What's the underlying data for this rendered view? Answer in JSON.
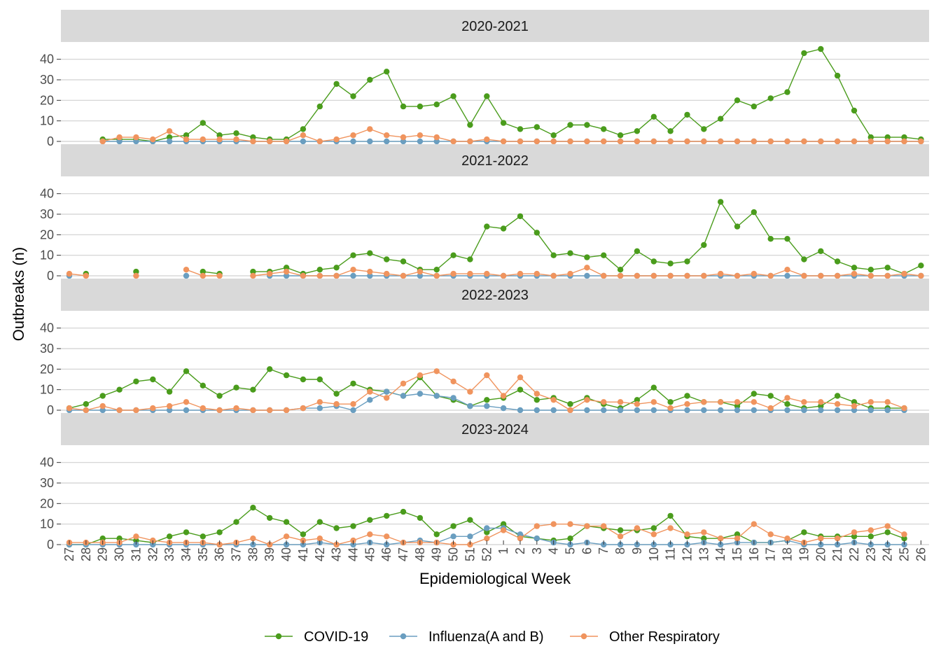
{
  "chart_data": {
    "type": "line",
    "xlabel": "Epidemiological Week",
    "ylabel": "Outbreaks (n)",
    "ylim": [
      0,
      45
    ],
    "yticks": [
      0,
      10,
      20,
      30,
      40
    ],
    "grid": true,
    "legend_position": "bottom",
    "categories": [
      "27",
      "28",
      "29",
      "30",
      "31",
      "32",
      "33",
      "34",
      "35",
      "36",
      "37",
      "38",
      "39",
      "40",
      "41",
      "42",
      "43",
      "44",
      "45",
      "46",
      "47",
      "48",
      "49",
      "50",
      "51",
      "52",
      "1",
      "2",
      "3",
      "4",
      "5",
      "6",
      "7",
      "8",
      "9",
      "10",
      "11",
      "12",
      "13",
      "14",
      "15",
      "16",
      "17",
      "18",
      "19",
      "20",
      "21",
      "22",
      "23",
      "24",
      "25",
      "26"
    ],
    "series_styles": [
      {
        "name": "COVID-19",
        "color": "#4a9c1c"
      },
      {
        "name": "Influenza(A and B)",
        "color": "#6a9ec0"
      },
      {
        "name": "Other Respiratory",
        "color": "#f0945e"
      }
    ],
    "panels": [
      {
        "title": "2020-2021",
        "series": [
          {
            "name": "COVID-19",
            "values": [
              null,
              null,
              1,
              1,
              1,
              0,
              2,
              3,
              9,
              3,
              4,
              2,
              1,
              1,
              6,
              17,
              28,
              22,
              30,
              34,
              17,
              17,
              18,
              22,
              8,
              22,
              9,
              6,
              7,
              3,
              8,
              8,
              6,
              3,
              5,
              12,
              5,
              13,
              6,
              11,
              20,
              17,
              21,
              24,
              43,
              45,
              32,
              15,
              2,
              2,
              2,
              1
            ]
          },
          {
            "name": "Influenza(A and B)",
            "values": [
              null,
              null,
              0,
              0,
              0,
              0,
              0,
              0,
              0,
              0,
              0,
              0,
              0,
              0,
              0,
              0,
              0,
              0,
              0,
              0,
              0,
              0,
              0,
              0,
              0,
              0,
              0,
              0,
              0,
              0,
              0,
              0,
              0,
              0,
              0,
              0,
              0,
              0,
              0,
              0,
              0,
              0,
              0,
              0,
              0,
              0,
              0,
              0,
              0,
              0,
              0,
              0
            ]
          },
          {
            "name": "Other Respiratory",
            "values": [
              null,
              null,
              0,
              2,
              2,
              1,
              5,
              1,
              1,
              1,
              1,
              0,
              0,
              0,
              3,
              0,
              1,
              3,
              6,
              3,
              2,
              3,
              2,
              0,
              0,
              1,
              0,
              0,
              0,
              0,
              0,
              0,
              0,
              0,
              0,
              0,
              0,
              0,
              0,
              0,
              0,
              0,
              0,
              0,
              0,
              0,
              0,
              0,
              0,
              0,
              0,
              0
            ]
          }
        ]
      },
      {
        "title": "2021-2022",
        "series": [
          {
            "name": "COVID-19",
            "values": [
              null,
              1,
              null,
              null,
              2,
              null,
              null,
              null,
              2,
              1,
              null,
              2,
              2,
              4,
              1,
              3,
              4,
              10,
              11,
              8,
              7,
              3,
              3,
              10,
              8,
              24,
              23,
              29,
              21,
              10,
              11,
              9,
              10,
              3,
              12,
              7,
              6,
              7,
              15,
              36,
              24,
              31,
              18,
              18,
              8,
              12,
              7,
              4,
              3,
              4,
              1,
              5
            ]
          },
          {
            "name": "Influenza(A and B)",
            "values": [
              0,
              null,
              null,
              null,
              null,
              null,
              null,
              0,
              null,
              null,
              null,
              null,
              0,
              0,
              0,
              0,
              0,
              0,
              0,
              0,
              0,
              0,
              0,
              0,
              0,
              0,
              0,
              0,
              0,
              0,
              0,
              0,
              0,
              0,
              0,
              0,
              0,
              0,
              0,
              0,
              0,
              0,
              0,
              0,
              0,
              0,
              0,
              0,
              0,
              0,
              0,
              0
            ]
          },
          {
            "name": "Other Respiratory",
            "values": [
              1,
              0,
              null,
              null,
              0,
              null,
              null,
              3,
              0,
              0,
              null,
              0,
              1,
              2,
              0,
              0,
              0,
              3,
              2,
              1,
              0,
              2,
              0,
              1,
              1,
              1,
              0,
              1,
              1,
              0,
              1,
              4,
              0,
              0,
              0,
              0,
              0,
              0,
              0,
              1,
              0,
              1,
              0,
              3,
              0,
              0,
              0,
              1,
              0,
              0,
              1,
              0
            ]
          }
        ]
      },
      {
        "title": "2022-2023",
        "series": [
          {
            "name": "COVID-19",
            "values": [
              1,
              3,
              7,
              10,
              14,
              15,
              9,
              19,
              12,
              7,
              11,
              10,
              20,
              17,
              15,
              15,
              8,
              13,
              10,
              9,
              7,
              16,
              7,
              5,
              2,
              5,
              6,
              10,
              5,
              6,
              3,
              6,
              3,
              1,
              5,
              11,
              4,
              7,
              4,
              4,
              2,
              8,
              7,
              3,
              1,
              2,
              7,
              4,
              1,
              1,
              1,
              null
            ]
          },
          {
            "name": "Influenza(A and B)",
            "values": [
              0,
              0,
              0,
              0,
              0,
              0,
              0,
              0,
              0,
              0,
              0,
              0,
              0,
              0,
              1,
              1,
              2,
              0,
              5,
              9,
              7,
              8,
              7,
              6,
              2,
              2,
              1,
              0,
              0,
              0,
              0,
              0,
              0,
              0,
              0,
              0,
              0,
              0,
              0,
              0,
              0,
              0,
              0,
              0,
              0,
              0,
              0,
              0,
              0,
              0,
              0,
              null
            ]
          },
          {
            "name": "Other Respiratory",
            "values": [
              1,
              0,
              2,
              0,
              0,
              1,
              2,
              4,
              1,
              0,
              1,
              0,
              0,
              0,
              1,
              4,
              3,
              3,
              9,
              6,
              13,
              17,
              19,
              14,
              9,
              17,
              7,
              16,
              8,
              5,
              0,
              5,
              4,
              4,
              3,
              4,
              1,
              3,
              4,
              4,
              4,
              4,
              1,
              6,
              4,
              4,
              3,
              2,
              4,
              4,
              1,
              null
            ]
          }
        ]
      },
      {
        "title": "2023-2024",
        "series": [
          {
            "name": "COVID-19",
            "values": [
              0,
              0,
              3,
              3,
              2,
              1,
              4,
              6,
              4,
              6,
              11,
              18,
              13,
              11,
              5,
              11,
              8,
              9,
              12,
              14,
              16,
              13,
              5,
              9,
              12,
              6,
              10,
              4,
              3,
              2,
              3,
              9,
              8,
              7,
              7,
              8,
              14,
              4,
              3,
              3,
              5,
              1,
              1,
              2,
              6,
              4,
              4,
              4,
              4,
              6,
              3,
              null
            ]
          },
          {
            "name": "Influenza(A and B)",
            "values": [
              0,
              0,
              0,
              0,
              0,
              0,
              0,
              0,
              0,
              0,
              0,
              0,
              0,
              0,
              0,
              1,
              0,
              0,
              1,
              0,
              1,
              2,
              1,
              4,
              4,
              8,
              8,
              5,
              3,
              1,
              0,
              1,
              0,
              0,
              0,
              0,
              0,
              0,
              1,
              0,
              1,
              1,
              1,
              2,
              0,
              0,
              0,
              1,
              0,
              0,
              0,
              null
            ]
          },
          {
            "name": "Other Respiratory",
            "values": [
              1,
              1,
              1,
              1,
              4,
              2,
              1,
              1,
              1,
              0,
              1,
              3,
              0,
              4,
              2,
              3,
              0,
              2,
              5,
              4,
              1,
              1,
              1,
              0,
              0,
              3,
              7,
              3,
              9,
              10,
              10,
              9,
              9,
              4,
              8,
              5,
              8,
              5,
              6,
              3,
              3,
              10,
              5,
              3,
              1,
              3,
              3,
              6,
              7,
              9,
              5,
              null
            ]
          }
        ]
      }
    ]
  }
}
